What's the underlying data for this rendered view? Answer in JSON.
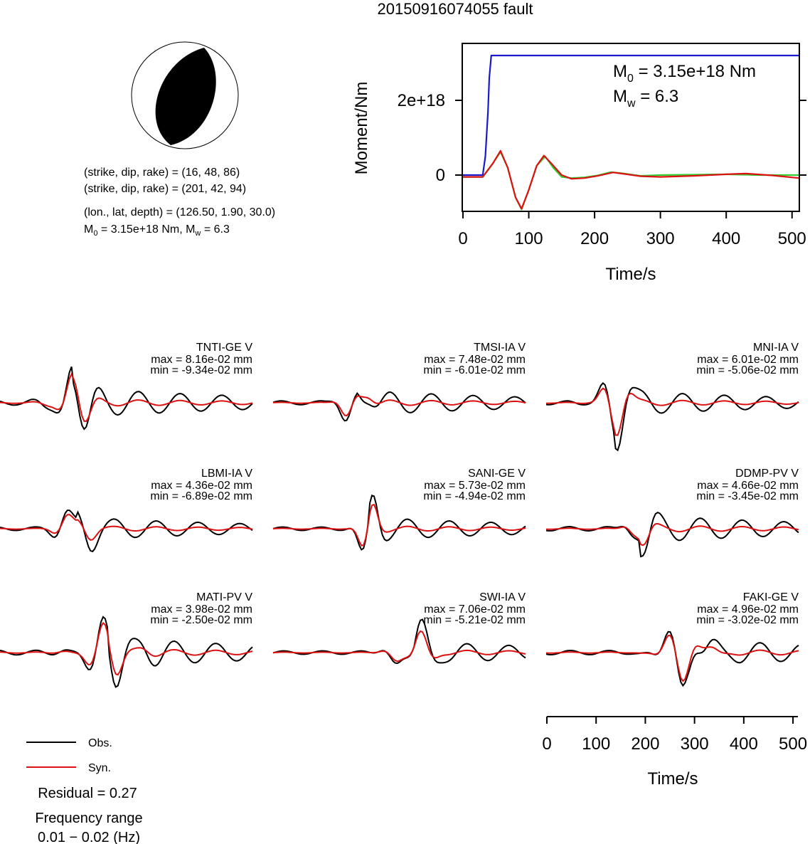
{
  "title": "20150916074055 fault",
  "mechanism": {
    "line1": "(strike, dip, rake) = (16, 48, 86)",
    "line2": "(strike, dip, rake) = (201, 42, 94)",
    "line3": "(lon., lat, depth) = (126.50, 1.90, 30.0)",
    "m0_prefix": "M",
    "m0_sub": "0",
    "m0_value": " = 3.15e+18 Nm, M",
    "mw_sub": "w",
    "mw_value": " = 6.3"
  },
  "colors": {
    "obs": "#000000",
    "syn": "#dd1111",
    "cumulative": "#1a1acc",
    "moment_rate": "#33cc33",
    "moment_rate2": "#dd1111"
  },
  "chart_data": [
    {
      "type": "line",
      "xlabel": "Time/s",
      "ylabel": "Moment/Nm",
      "xlim": [
        0,
        510
      ],
      "x_ticks": [
        "0",
        "100",
        "200",
        "300",
        "400",
        "500"
      ],
      "y_ticks": [
        "0",
        "2e+18"
      ],
      "annotation": {
        "m0_prefix": "M",
        "m0_sub": "0",
        "m0_value": " = 3.15e+18 Nm",
        "mw_prefix": "M",
        "mw_sub": "w",
        "mw_value": " = 6.3"
      },
      "series": [
        {
          "role": "cumulative",
          "x": [
            0,
            30,
            34,
            38,
            40,
            43,
            510
          ],
          "y": [
            0,
            0,
            5e+17,
            1.7e+18,
            2.6e+18,
            3.2e+18,
            3.2e+18
          ]
        },
        {
          "role": "moment_rate",
          "x": [
            0,
            30,
            45,
            57,
            68,
            80,
            89,
            100,
            112,
            125,
            137,
            150,
            165,
            185,
            205,
            225,
            245,
            270,
            300,
            350,
            400,
            450,
            510
          ],
          "y": [
            -5e+16,
            -5e+16,
            3e+17,
            6.2e+17,
            2e+17,
            -6e+17,
            -9.2e+17,
            -4e+17,
            2.5e+17,
            5e+17,
            2e+17,
            -5e+16,
            -8e+16,
            -6e+16,
            -1e+16,
            8e+16,
            4e+16,
            -2e+16,
            0,
            1e+16,
            2e+16,
            0,
            0
          ]
        },
        {
          "role": "moment_rate2",
          "x": [
            0,
            30,
            45,
            57,
            68,
            80,
            89,
            100,
            112,
            123,
            135,
            150,
            165,
            185,
            205,
            228,
            245,
            270,
            300,
            350,
            400,
            430,
            470,
            510
          ],
          "y": [
            -5e+16,
            -5e+16,
            3e+17,
            6.5e+17,
            2e+17,
            -6e+17,
            -9e+17,
            -4e+17,
            2.5e+17,
            5.2e+17,
            3e+17,
            0,
            -1e+17,
            -8e+16,
            -2e+16,
            7e+16,
            3e+16,
            -3e+16,
            -5e+16,
            -2e+16,
            2e+16,
            4e+16,
            -1e+16,
            -8e+16
          ]
        }
      ]
    },
    {
      "type": "line",
      "panels": [
        {
          "station": "TNTI-GE V",
          "max": "max = 8.16e-02 mm",
          "min": "min = -9.34e-02 mm"
        },
        {
          "station": "TMSI-IA V",
          "max": "max = 7.48e-02 mm",
          "min": "min = -6.01e-02 mm"
        },
        {
          "station": "MNI-IA V",
          "max": "max = 6.01e-02 mm",
          "min": "min = -5.06e-02 mm"
        },
        {
          "station": "LBMI-IA V",
          "max": "max = 4.36e-02 mm",
          "min": "min = -6.89e-02 mm"
        },
        {
          "station": "SANI-GE V",
          "max": "max = 5.73e-02 mm",
          "min": "min = -4.94e-02 mm"
        },
        {
          "station": "DDMP-PV V",
          "max": "max = 4.66e-02 mm",
          "min": "min = -3.45e-02 mm"
        },
        {
          "station": "MATI-PV V",
          "max": "max = 3.98e-02 mm",
          "min": "min = -2.50e-02 mm"
        },
        {
          "station": "SWI-IA V",
          "max": "max = 7.06e-02 mm",
          "min": "min = -5.21e-02 mm"
        },
        {
          "station": "FAKI-GE V",
          "max": "max = 4.96e-02 mm",
          "min": "min = -3.02e-02 mm"
        }
      ],
      "xlabel": "Time/s",
      "xlim": [
        0,
        510
      ],
      "x_ticks": [
        "0",
        "100",
        "200",
        "300",
        "400",
        "500"
      ]
    }
  ],
  "legend": {
    "obs": "Obs.",
    "syn": "Syn."
  },
  "residual": "Residual = 0.27",
  "freq_label": "Frequency range",
  "freq_value": "0.01 − 0.02 (Hz)"
}
